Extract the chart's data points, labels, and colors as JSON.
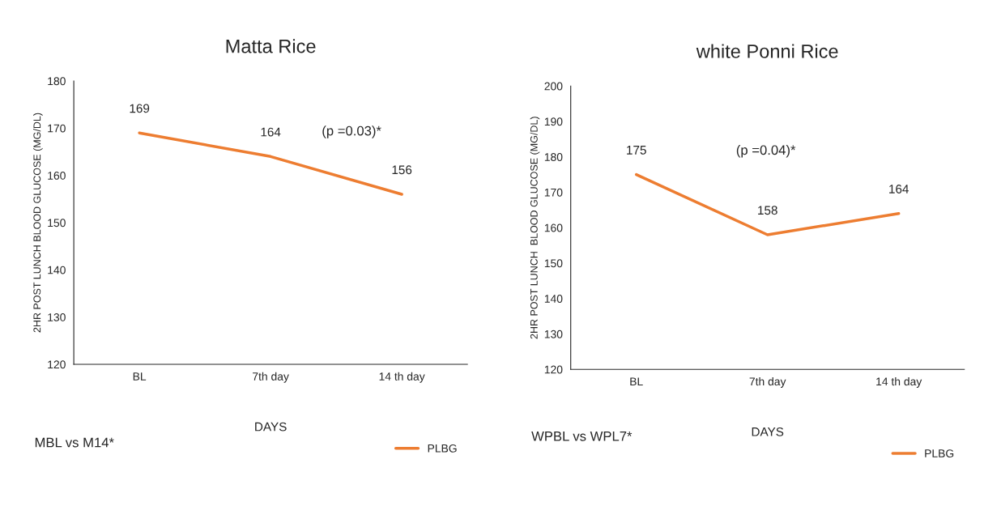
{
  "chart_data": [
    {
      "type": "line",
      "title": "Matta Rice",
      "xlabel": "DAYS",
      "ylabel": "2HR POST LUNCH BLOOD GLUCOSE (MG/DL)",
      "categories": [
        "BL",
        "7th day",
        "14 th day"
      ],
      "series": [
        {
          "name": "PLBG",
          "color": "#ed7d31",
          "values": [
            169,
            164,
            156
          ]
        }
      ],
      "ylim": [
        120,
        180
      ],
      "yticks": [
        120,
        130,
        140,
        150,
        160,
        170,
        180
      ],
      "data_labels": true,
      "legend": "bottom right",
      "grid": false,
      "annotations": [
        "(p =0.03)*",
        "MBL vs M14*"
      ]
    },
    {
      "type": "line",
      "title": "white Ponni Rice",
      "xlabel": "DAYS",
      "ylabel": "2HR POST LUNCH  BLOOD GLUCOSE (MG/DL)",
      "categories": [
        "BL",
        "7th day",
        "14 th day"
      ],
      "series": [
        {
          "name": "PLBG",
          "color": "#ed7d31",
          "values": [
            175,
            158,
            164
          ]
        }
      ],
      "ylim": [
        120,
        200
      ],
      "yticks": [
        120,
        130,
        140,
        150,
        160,
        170,
        180,
        190,
        200
      ],
      "data_labels": true,
      "legend": "bottom right",
      "grid": false,
      "annotations": [
        "(p =0.04)*",
        "WPBL vs WPL7*"
      ]
    }
  ]
}
